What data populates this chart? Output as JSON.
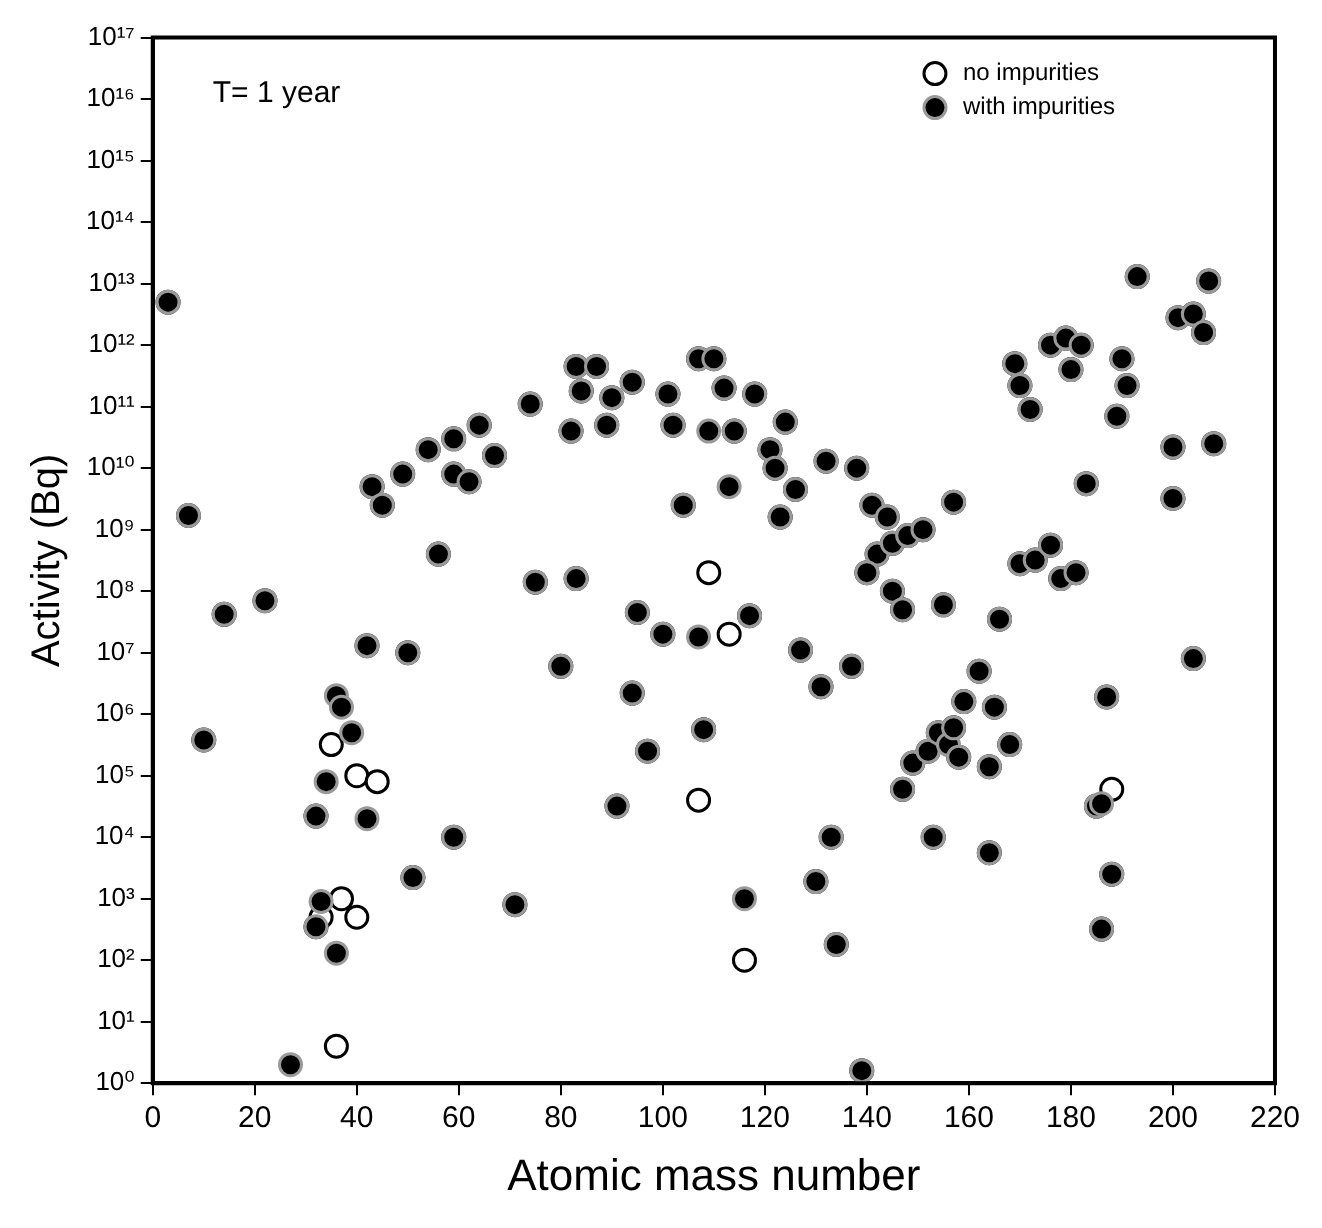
{
  "chart_data": {
    "type": "scatter",
    "xlabel": "Atomic mass number",
    "ylabel": "Activity (Bq)",
    "annotations": [
      "T= 1 year"
    ],
    "legend": "top right",
    "marker": "circle",
    "log": "y",
    "grid": false,
    "xlim": [
      0,
      220
    ],
    "xticks": [
      0,
      20,
      40,
      60,
      80,
      100,
      120,
      140,
      160,
      180,
      200,
      220
    ],
    "ylim": [
      1,
      1e+17
    ],
    "yticks": [
      {
        "value": 1,
        "label": "10⁰"
      },
      {
        "value": 10,
        "label": "10¹"
      },
      {
        "value": 100,
        "label": "10²"
      },
      {
        "value": 1000.0,
        "label": "10³"
      },
      {
        "value": 10000.0,
        "label": "10⁴"
      },
      {
        "value": 100000.0,
        "label": "10⁵"
      },
      {
        "value": 1000000.0,
        "label": "10⁶"
      },
      {
        "value": 10000000.0,
        "label": "10⁷"
      },
      {
        "value": 100000000.0,
        "label": "10⁸"
      },
      {
        "value": 1000000000.0,
        "label": "10⁹"
      },
      {
        "value": 10000000000.0,
        "label": "10¹⁰"
      },
      {
        "value": 100000000000.0,
        "label": "10¹¹"
      },
      {
        "value": 1000000000000.0,
        "label": "10¹²"
      },
      {
        "value": 10000000000000.0,
        "label": "10¹³"
      },
      {
        "value": 100000000000000.0,
        "label": "10¹⁴"
      },
      {
        "value": 1000000000000000.0,
        "label": "10¹⁵"
      },
      {
        "value": 1e+16,
        "label": "10¹⁶"
      },
      {
        "value": 1e+17,
        "label": "10¹⁷"
      }
    ],
    "series": [
      {
        "name": "no impurities",
        "color": "#000000",
        "x": [
          3,
          7,
          10,
          14,
          22,
          43,
          45,
          49,
          54,
          56,
          59,
          59,
          62,
          64,
          67,
          74,
          75,
          80,
          83,
          82,
          83,
          84,
          87,
          89,
          90,
          94,
          101,
          102,
          104,
          107,
          110,
          112,
          114,
          118,
          121,
          122,
          124,
          126,
          132,
          138,
          141,
          144,
          142,
          140,
          145,
          148,
          151,
          157,
          145,
          147,
          155,
          162,
          166,
          170,
          173,
          176,
          178,
          181,
          183,
          169,
          170,
          172,
          176,
          179,
          180,
          182,
          190,
          191,
          189,
          193,
          201,
          204,
          206,
          207,
          208,
          200,
          200,
          204,
          187,
          185,
          188,
          186,
          149,
          152,
          154,
          156,
          158,
          157,
          159,
          164,
          168,
          165,
          153,
          164,
          147,
          137,
          131,
          127,
          133,
          130,
          134,
          139,
          123,
          117,
          100,
          95,
          94,
          97,
          91,
          108,
          71,
          59,
          51,
          50,
          42,
          32,
          32,
          109,
          113,
          107,
          116,
          35,
          40,
          44,
          37,
          40,
          33,
          36,
          188
        ],
        "values": [
          5000000000000.0,
          1700000000.0,
          380000.0,
          42000000.0,
          70000000.0,
          5000000000.0,
          2500000000.0,
          8000000000.0,
          20000000000.0,
          400000000.0,
          8000000000.0,
          30000000000.0,
          6000000000.0,
          50000000000.0,
          16000000000.0,
          110000000000.0,
          140000000.0,
          6000000.0,
          160000000.0,
          40000000000.0,
          450000000000.0,
          180000000000.0,
          450000000000.0,
          50000000000.0,
          140000000000.0,
          250000000000.0,
          160000000000.0,
          50000000000.0,
          2500000000.0,
          600000000000.0,
          600000000000.0,
          200000000000.0,
          40000000000.0,
          160000000000.0,
          20000000000.0,
          10000000000.0,
          56000000000.0,
          4500000000.0,
          13000000000.0,
          10000000000.0,
          2500000000.0,
          1600000000.0,
          400000000.0,
          200000000.0,
          600000000.0,
          800000000.0,
          1000000000.0,
          2800000000.0,
          100000000.0,
          50000000.0,
          60000000.0,
          5000000.0,
          35000000.0,
          280000000.0,
          320000000.0,
          560000000.0,
          160000000.0,
          200000000.0,
          5600000000.0,
          500000000000.0,
          220000000000.0,
          90000000000.0,
          1000000000000.0,
          1300000000000.0,
          400000000000.0,
          1000000000000.0,
          600000000000.0,
          220000000000.0,
          70000000000.0,
          13000000000000.0,
          2800000000000.0,
          3200000000000.0,
          1600000000000.0,
          11000000000000.0,
          25000000000.0,
          22000000000.0,
          3200000000.0,
          8000000.0,
          1900000.0,
          32000.0,
          2500.0,
          320,
          160000.0,
          250000.0,
          500000.0,
          null,
          200000.0,
          600000.0,
          1600000.0,
          140000.0,
          320000.0,
          1300000.0,
          10000.0,
          5600.0,
          60000.0,
          6000000.0,
          2800000.0,
          11000000.0,
          10000.0,
          1900.0,
          180,
          1.6,
          1600000000.0,
          40000000.0,
          20000000.0,
          45000000.0,
          2200000.0,
          250000.0,
          32000.0,
          560000.0,
          800,
          10000.0,
          2200.0,
          10000000.0,
          13000000.0,
          350,
          22000.0,
          200000000.0,
          20000000.0,
          40000.0,
          100,
          320000.0,
          100000.0,
          80000.0,
          1000,
          500,
          500,
          4,
          60000.0
        ],
        "line_style": "none"
      },
      {
        "name": "with impurities",
        "color": "#000000",
        "x": [
          3,
          7,
          10,
          14,
          22,
          43,
          45,
          49,
          54,
          56,
          59,
          59,
          62,
          64,
          67,
          74,
          75,
          80,
          83,
          82,
          83,
          84,
          87,
          89,
          90,
          94,
          101,
          102,
          104,
          107,
          110,
          112,
          114,
          118,
          121,
          122,
          124,
          126,
          132,
          138,
          141,
          144,
          142,
          140,
          145,
          148,
          151,
          157,
          145,
          147,
          155,
          162,
          166,
          170,
          173,
          176,
          178,
          181,
          183,
          169,
          170,
          172,
          176,
          179,
          180,
          182,
          190,
          191,
          189,
          193,
          201,
          204,
          206,
          207,
          208,
          200,
          200,
          204,
          187,
          185,
          188,
          186,
          149,
          152,
          154,
          156,
          158,
          157,
          159,
          164,
          168,
          165,
          153,
          164,
          147,
          137,
          131,
          127,
          133,
          130,
          134,
          139,
          123,
          117,
          100,
          95,
          94,
          97,
          91,
          108,
          71,
          59,
          51,
          50,
          42,
          32,
          32,
          109,
          113,
          107,
          116,
          36,
          37,
          39,
          42,
          34,
          33,
          36,
          27,
          186
        ],
        "values": [
          5000000000000.0,
          1700000000.0,
          380000.0,
          42000000.0,
          70000000.0,
          5000000000.0,
          2500000000.0,
          8000000000.0,
          20000000000.0,
          400000000.0,
          8000000000.0,
          30000000000.0,
          6000000000.0,
          50000000000.0,
          16000000000.0,
          110000000000.0,
          140000000.0,
          6000000.0,
          160000000.0,
          40000000000.0,
          450000000000.0,
          180000000000.0,
          450000000000.0,
          50000000000.0,
          140000000000.0,
          250000000000.0,
          160000000000.0,
          50000000000.0,
          2500000000.0,
          600000000000.0,
          600000000000.0,
          200000000000.0,
          40000000000.0,
          160000000000.0,
          20000000000.0,
          10000000000.0,
          56000000000.0,
          4500000000.0,
          13000000000.0,
          10000000000.0,
          2500000000.0,
          1600000000.0,
          400000000.0,
          200000000.0,
          600000000.0,
          800000000.0,
          1000000000.0,
          2800000000.0,
          100000000.0,
          50000000.0,
          60000000.0,
          5000000.0,
          35000000.0,
          280000000.0,
          320000000.0,
          560000000.0,
          160000000.0,
          200000000.0,
          5600000000.0,
          500000000000.0,
          220000000000.0,
          90000000000.0,
          1000000000000.0,
          1300000000000.0,
          400000000000.0,
          1000000000000.0,
          600000000000.0,
          220000000000.0,
          70000000000.0,
          13000000000000.0,
          2800000000000.0,
          3200000000000.0,
          1600000000000.0,
          11000000000000.0,
          25000000000.0,
          22000000000.0,
          3200000000.0,
          8000000.0,
          1900000.0,
          32000.0,
          2500.0,
          320,
          160000.0,
          250000.0,
          500000.0,
          320000.0,
          200000.0,
          600000.0,
          1600000.0,
          140000.0,
          320000.0,
          1300000.0,
          10000.0,
          5600.0,
          60000.0,
          6000000.0,
          2800000.0,
          11000000.0,
          10000.0,
          1900.0,
          180,
          1.6,
          1600000000.0,
          40000000.0,
          20000000.0,
          45000000.0,
          2200000.0,
          250000.0,
          32000.0,
          560000.0,
          800,
          10000.0,
          2200.0,
          10000000.0,
          13000000.0,
          350,
          22000.0,
          40000000000.0,
          5000000000.0,
          18000000.0,
          1000,
          2000000.0,
          1300000.0,
          500000.0,
          20000.0,
          80000.0,
          900,
          130,
          2,
          35000.0
        ],
        "line_style": "none"
      }
    ]
  }
}
